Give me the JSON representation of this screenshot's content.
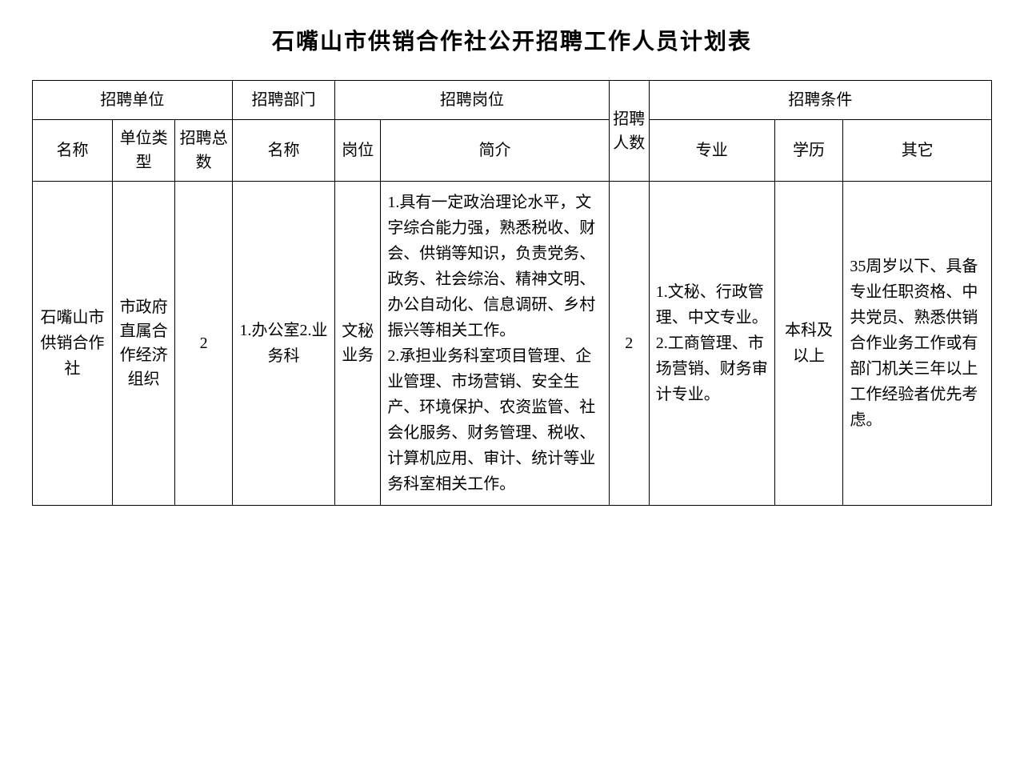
{
  "title": "石嘴山市供销合作社公开招聘工作人员计划表",
  "headers": {
    "unit": "招聘单位",
    "dept": "招聘部门",
    "position": "招聘岗位",
    "count": "招聘人数",
    "condition": "招聘条件",
    "unit_name": "名称",
    "unit_type": "单位类型",
    "unit_total": "招聘总数",
    "dept_name": "名称",
    "post": "岗位",
    "desc": "简介",
    "major": "专业",
    "edu": "学历",
    "other": "其它"
  },
  "row": {
    "unit_name": "石嘴山市供销合作社",
    "unit_type": "市政府直属合作经济组织",
    "unit_total": "2",
    "dept_name": "1.办公室2.业务科",
    "post": "文秘业务",
    "desc": "1.具有一定政治理论水平，文字综合能力强，熟悉税收、财会、供销等知识，负责党务、政务、社会综治、精神文明、办公自动化、信息调研、乡村振兴等相关工作。\n2.承担业务科室项目管理、企业管理、市场营销、安全生产、环境保护、农资监管、社会化服务、财务管理、税收、计算机应用、审计、统计等业务科室相关工作。",
    "count": "2",
    "major": "1.文秘、行政管理、中文专业。\n2.工商管理、市场营销、财务审计专业。",
    "edu": "本科及以上",
    "other": "35周岁以下、具备专业任职资格、中共党员、熟悉供销合作业务工作或有部门机关三年以上工作经验者优先考虑。"
  },
  "style": {
    "background": "#ffffff",
    "text_color": "#000000",
    "border_color": "#000000",
    "title_fontsize": 28,
    "cell_fontsize": 20,
    "font_family": "SimSun"
  }
}
